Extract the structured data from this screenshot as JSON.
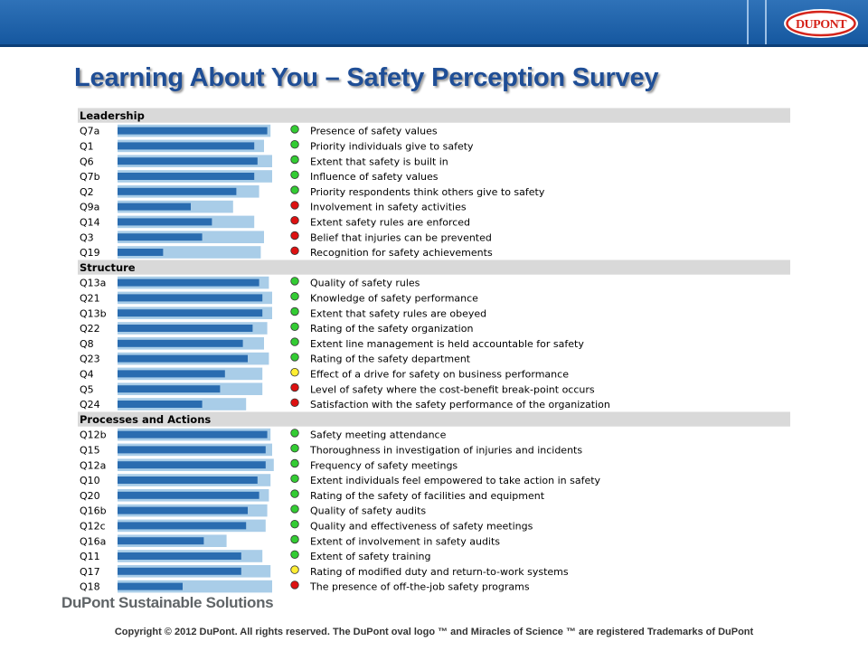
{
  "page": {
    "title": "Learning About You – Safety Perception Survey",
    "logo_text": "DUPONT",
    "brand": "DuPont Sustainable Solutions",
    "copyright": "Copyright © 2012 DuPont. All rights reserved. The DuPont oval logo ™ and Miracles of Science ™ are registered Trademarks of DuPont"
  },
  "colors": {
    "header_band": "#1d5fa6",
    "title": "#1f4e96",
    "bar_dark": "#2a6cb0",
    "bar_light": "#a9cde8",
    "section_bg": "#d9d9d9",
    "status_green": "#33cc33",
    "status_yellow": "#ffee33",
    "status_red": "#dd1111"
  },
  "chart_data": {
    "type": "bar",
    "orientation": "horizontal",
    "xlim": [
      0,
      100
    ],
    "note_series": [
      "dark bar value",
      "light bar value"
    ],
    "sections": [
      {
        "name": "Leadership",
        "rows": [
          {
            "code": "Q7a",
            "label": "Presence of safety values",
            "dark": 92,
            "light": 94,
            "status": "green"
          },
          {
            "code": "Q1",
            "label": "Priority individuals give to safety",
            "dark": 84,
            "light": 90,
            "status": "green"
          },
          {
            "code": "Q6",
            "label": "Extent that safety is built in",
            "dark": 86,
            "light": 95,
            "status": "green"
          },
          {
            "code": "Q7b",
            "label": "Influence of safety values",
            "dark": 84,
            "light": 95,
            "status": "green"
          },
          {
            "code": "Q2",
            "label": "Priority respondents think others give to safety",
            "dark": 73,
            "light": 87,
            "status": "green"
          },
          {
            "code": "Q9a",
            "label": "Involvement in safety activities",
            "dark": 45,
            "light": 71,
            "status": "red"
          },
          {
            "code": "Q14",
            "label": "Extent safety rules are enforced",
            "dark": 58,
            "light": 84,
            "status": "red"
          },
          {
            "code": "Q3",
            "label": "Belief that injuries can be prevented",
            "dark": 52,
            "light": 90,
            "status": "red"
          },
          {
            "code": "Q19",
            "label": "Recognition for safety achievements",
            "dark": 28,
            "light": 88,
            "status": "red"
          }
        ]
      },
      {
        "name": "Structure",
        "rows": [
          {
            "code": "Q13a",
            "label": "Quality of safety rules",
            "dark": 87,
            "light": 93,
            "status": "green"
          },
          {
            "code": "Q21",
            "label": "Knowledge of safety performance",
            "dark": 89,
            "light": 95,
            "status": "green"
          },
          {
            "code": "Q13b",
            "label": "Extent that safety rules are obeyed",
            "dark": 89,
            "light": 95,
            "status": "green"
          },
          {
            "code": "Q22",
            "label": "Rating of the safety organization",
            "dark": 83,
            "light": 92,
            "status": "green"
          },
          {
            "code": "Q8",
            "label": "Extent line management is held accountable for safety",
            "dark": 77,
            "light": 90,
            "status": "green"
          },
          {
            "code": "Q23",
            "label": "Rating of the safety department",
            "dark": 80,
            "light": 93,
            "status": "green"
          },
          {
            "code": "Q4",
            "label": "Effect of a drive for safety on business performance",
            "dark": 66,
            "light": 89,
            "status": "yellow"
          },
          {
            "code": "Q5",
            "label": "Level of safety where the cost-benefit break-point occurs",
            "dark": 63,
            "light": 89,
            "status": "red"
          },
          {
            "code": "Q24",
            "label": "Satisfaction with the safety performance of the organization",
            "dark": 52,
            "light": 79,
            "status": "red"
          }
        ]
      },
      {
        "name": "Processes and Actions",
        "rows": [
          {
            "code": "Q12b",
            "label": "Safety meeting attendance",
            "dark": 92,
            "light": 94,
            "status": "green"
          },
          {
            "code": "Q15",
            "label": "Thoroughness in investigation of injuries and incidents",
            "dark": 91,
            "light": 95,
            "status": "green"
          },
          {
            "code": "Q12a",
            "label": "Frequency of safety meetings",
            "dark": 91,
            "light": 96,
            "status": "green"
          },
          {
            "code": "Q10",
            "label": "Extent individuals feel empowered to take action in safety",
            "dark": 86,
            "light": 94,
            "status": "green"
          },
          {
            "code": "Q20",
            "label": "Rating of the safety of facilities and equipment",
            "dark": 87,
            "light": 93,
            "status": "green"
          },
          {
            "code": "Q16b",
            "label": "Quality of safety audits",
            "dark": 80,
            "light": 92,
            "status": "green"
          },
          {
            "code": "Q12c",
            "label": "Quality and effectiveness of safety meetings",
            "dark": 79,
            "light": 91,
            "status": "green"
          },
          {
            "code": "Q16a",
            "label": "Extent of involvement in safety audits",
            "dark": 53,
            "light": 67,
            "status": "green"
          },
          {
            "code": "Q11",
            "label": "Extent of safety training",
            "dark": 76,
            "light": 89,
            "status": "green"
          },
          {
            "code": "Q17",
            "label": "Rating of modified duty and return-to-work systems",
            "dark": 76,
            "light": 94,
            "status": "yellow"
          },
          {
            "code": "Q18",
            "label": "The presence of off-the-job safety programs",
            "dark": 40,
            "light": 95,
            "status": "red"
          }
        ]
      }
    ]
  }
}
